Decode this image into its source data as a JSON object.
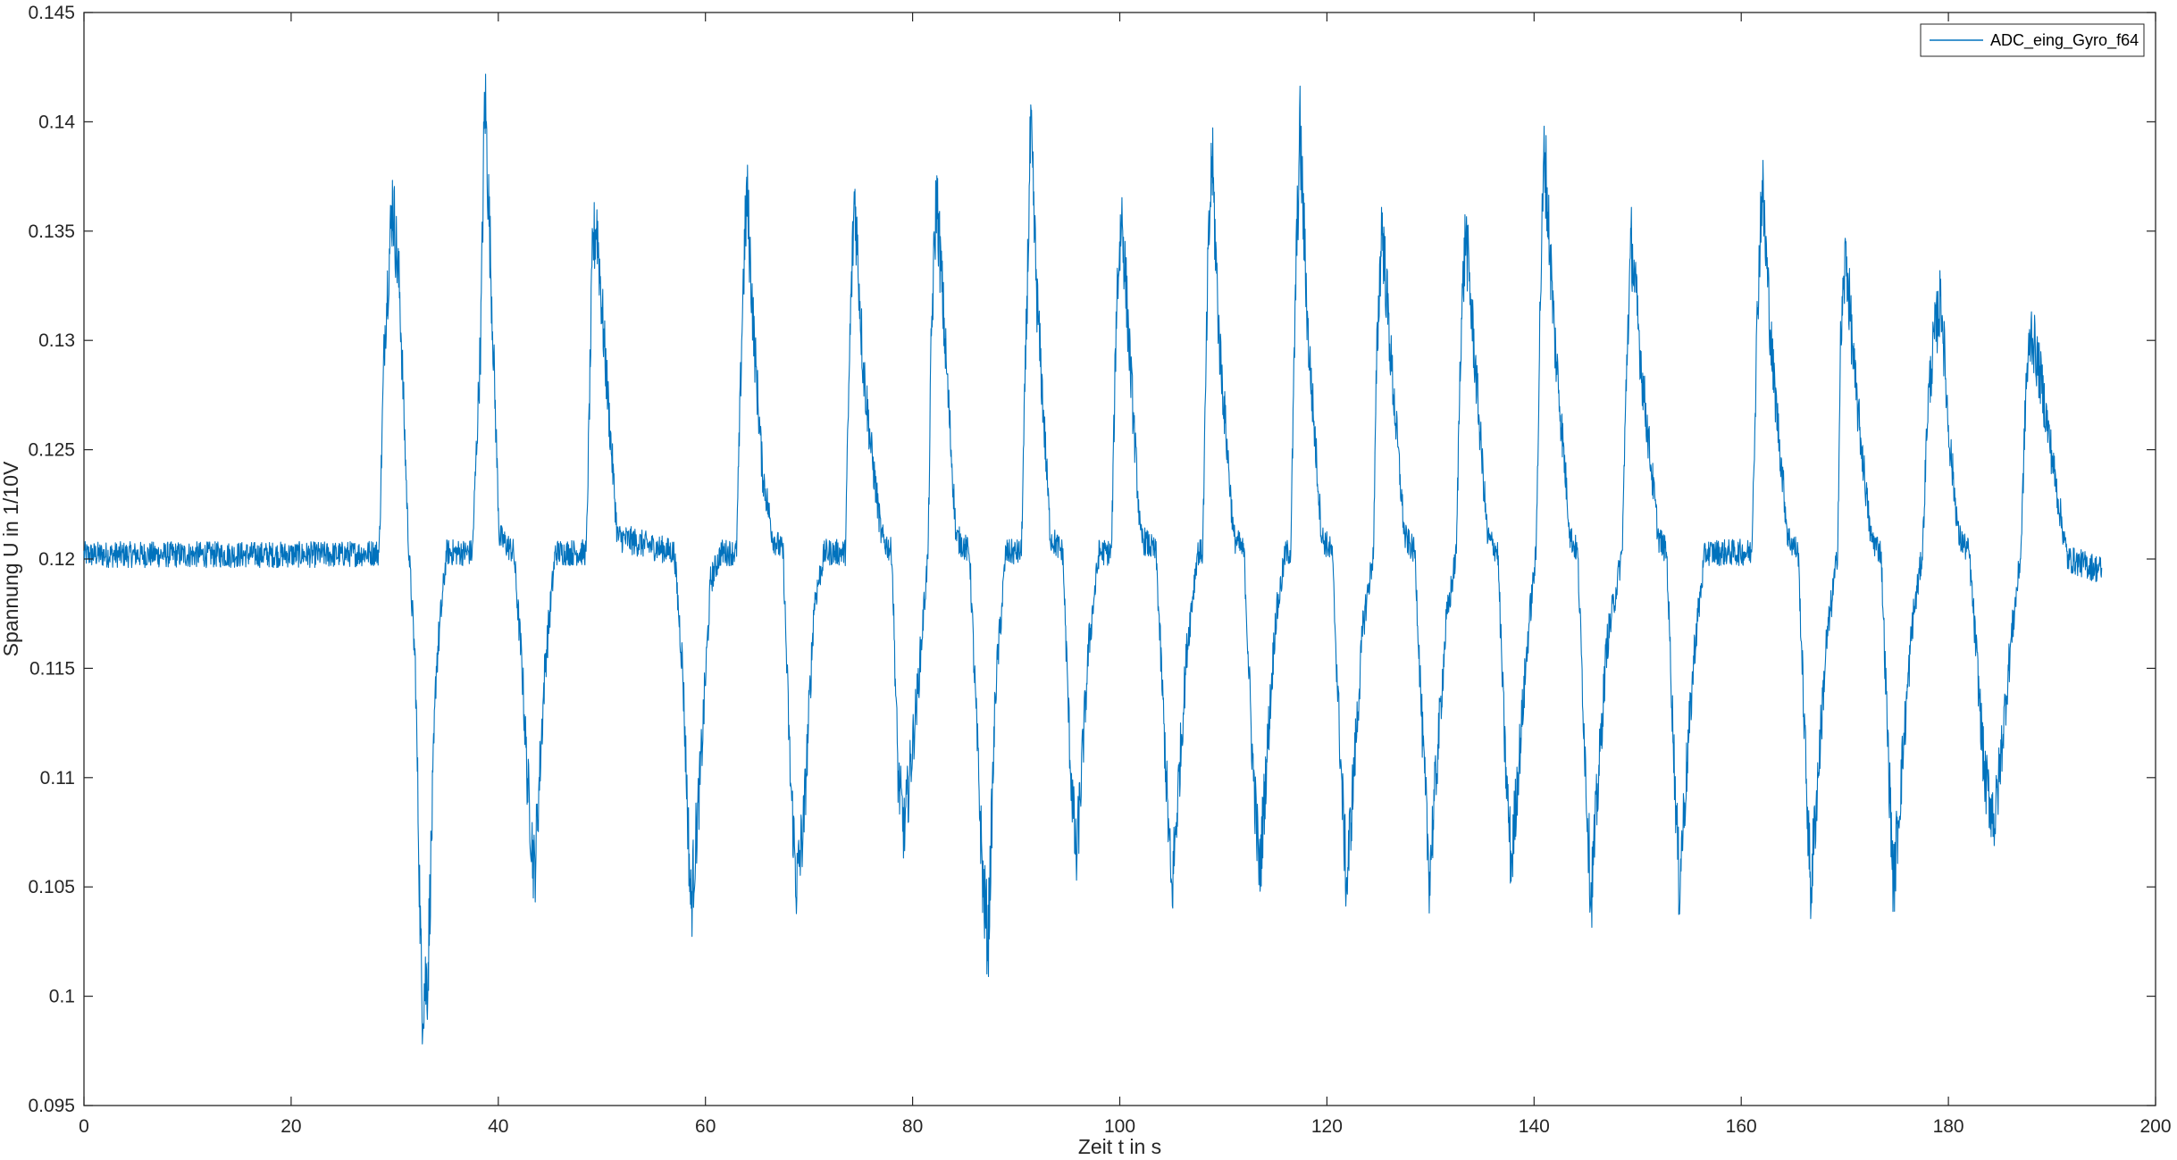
{
  "chart_data": {
    "type": "line",
    "title": "",
    "xlabel": "Zeit t in s",
    "ylabel": "Spannung U in 1/10V",
    "xlim": [
      0,
      200
    ],
    "ylim": [
      0.095,
      0.145
    ],
    "x_ticks": [
      0,
      20,
      40,
      60,
      80,
      100,
      120,
      140,
      160,
      180,
      200
    ],
    "x_tick_labels": [
      "0",
      "20",
      "40",
      "60",
      "80",
      "100",
      "120",
      "140",
      "160",
      "180",
      "200"
    ],
    "y_ticks": [
      0.095,
      0.1,
      0.105,
      0.11,
      0.115,
      0.12,
      0.125,
      0.13,
      0.135,
      0.14,
      0.145
    ],
    "y_tick_labels": [
      "0.095",
      "0.1",
      "0.105",
      "0.11",
      "0.115",
      "0.12",
      "0.125",
      "0.13",
      "0.135",
      "0.14",
      "0.145"
    ],
    "grid": "off",
    "legend_position": "top-right",
    "series": [
      {
        "name": "ADC_eing_Gyro_f64",
        "color": "#0072BD",
        "baseline": 0.1202,
        "x_end": 194.8,
        "points": [
          [
            0,
            0.1202
          ],
          [
            24.5,
            0.1202
          ],
          [
            28.5,
            0.1203
          ],
          [
            29.0,
            0.13
          ],
          [
            29.8,
            0.1365
          ],
          [
            30.5,
            0.132
          ],
          [
            31.3,
            0.121
          ],
          [
            32.0,
            0.115
          ],
          [
            32.6,
            0.1
          ],
          [
            33.2,
            0.101
          ],
          [
            34.0,
            0.115
          ],
          [
            35.0,
            0.1203
          ],
          [
            37.5,
            0.1203
          ],
          [
            38.3,
            0.13
          ],
          [
            38.7,
            0.1415
          ],
          [
            39.3,
            0.133
          ],
          [
            40.1,
            0.121
          ],
          [
            41.5,
            0.1203
          ],
          [
            42.3,
            0.115
          ],
          [
            42.8,
            0.11
          ],
          [
            43.5,
            0.1055
          ],
          [
            44.5,
            0.115
          ],
          [
            45.5,
            0.1203
          ],
          [
            48.5,
            0.1203
          ],
          [
            49.1,
            0.134
          ],
          [
            49.5,
            0.1355
          ],
          [
            50.2,
            0.13
          ],
          [
            51.5,
            0.121
          ],
          [
            57.0,
            0.1203
          ],
          [
            57.8,
            0.115
          ],
          [
            58.6,
            0.104
          ],
          [
            59.5,
            0.11
          ],
          [
            60.5,
            0.119
          ],
          [
            61.5,
            0.1203
          ],
          [
            63.0,
            0.1203
          ],
          [
            63.6,
            0.132
          ],
          [
            64.0,
            0.1368
          ],
          [
            64.7,
            0.13
          ],
          [
            65.5,
            0.124
          ],
          [
            66.5,
            0.121
          ],
          [
            67.5,
            0.1203
          ],
          [
            68.2,
            0.11
          ],
          [
            68.8,
            0.105
          ],
          [
            69.5,
            0.108
          ],
          [
            70.5,
            0.118
          ],
          [
            71.5,
            0.1203
          ],
          [
            73.5,
            0.1203
          ],
          [
            74.0,
            0.131
          ],
          [
            74.4,
            0.1368
          ],
          [
            75.2,
            0.129
          ],
          [
            76.0,
            0.125
          ],
          [
            77.0,
            0.121
          ],
          [
            78.0,
            0.1203
          ],
          [
            78.6,
            0.11
          ],
          [
            79.2,
            0.1075
          ],
          [
            80.5,
            0.114
          ],
          [
            81.5,
            0.1203
          ],
          [
            81.8,
            0.13
          ],
          [
            82.3,
            0.1368
          ],
          [
            83.0,
            0.131
          ],
          [
            84.2,
            0.121
          ],
          [
            85.5,
            0.1203
          ],
          [
            86.2,
            0.112
          ],
          [
            86.8,
            0.105
          ],
          [
            87.3,
            0.1025
          ],
          [
            88.0,
            0.114
          ],
          [
            89.0,
            0.1203
          ],
          [
            90.5,
            0.1203
          ],
          [
            91.0,
            0.131
          ],
          [
            91.4,
            0.1395
          ],
          [
            92.0,
            0.132
          ],
          [
            93.3,
            0.121
          ],
          [
            94.5,
            0.1203
          ],
          [
            95.2,
            0.111
          ],
          [
            95.8,
            0.106
          ],
          [
            97.0,
            0.116
          ],
          [
            98.0,
            0.1203
          ],
          [
            99.2,
            0.1203
          ],
          [
            99.7,
            0.132
          ],
          [
            100.2,
            0.1358
          ],
          [
            101.0,
            0.129
          ],
          [
            102.0,
            0.121
          ],
          [
            103.5,
            0.1203
          ],
          [
            104.3,
            0.112
          ],
          [
            105.0,
            0.1045
          ],
          [
            106.5,
            0.116
          ],
          [
            107.5,
            0.1203
          ],
          [
            108.0,
            0.1203
          ],
          [
            108.5,
            0.133
          ],
          [
            108.9,
            0.1385
          ],
          [
            109.6,
            0.13
          ],
          [
            111.0,
            0.121
          ],
          [
            112.0,
            0.1203
          ],
          [
            112.8,
            0.111
          ],
          [
            113.5,
            0.1055
          ],
          [
            115.0,
            0.117
          ],
          [
            116.0,
            0.1203
          ],
          [
            116.5,
            0.1203
          ],
          [
            117.0,
            0.133
          ],
          [
            117.4,
            0.1395
          ],
          [
            118.2,
            0.13
          ],
          [
            119.5,
            0.121
          ],
          [
            120.5,
            0.1203
          ],
          [
            121.3,
            0.111
          ],
          [
            121.9,
            0.105
          ],
          [
            123.5,
            0.117
          ],
          [
            124.5,
            0.1203
          ],
          [
            124.8,
            0.129
          ],
          [
            125.3,
            0.1355
          ],
          [
            126.2,
            0.129
          ],
          [
            127.5,
            0.121
          ],
          [
            128.5,
            0.1203
          ],
          [
            129.3,
            0.111
          ],
          [
            129.9,
            0.1055
          ],
          [
            131.5,
            0.117
          ],
          [
            132.5,
            0.1203
          ],
          [
            132.9,
            0.13
          ],
          [
            133.4,
            0.135
          ],
          [
            134.3,
            0.129
          ],
          [
            135.5,
            0.121
          ],
          [
            136.5,
            0.1203
          ],
          [
            137.2,
            0.111
          ],
          [
            137.8,
            0.106
          ],
          [
            139.5,
            0.117
          ],
          [
            140.2,
            0.1203
          ],
          [
            140.6,
            0.132
          ],
          [
            141.0,
            0.1388
          ],
          [
            142.0,
            0.13
          ],
          [
            143.5,
            0.121
          ],
          [
            144.2,
            0.1203
          ],
          [
            145.0,
            0.11
          ],
          [
            145.5,
            0.1045
          ],
          [
            147.0,
            0.116
          ],
          [
            148.5,
            0.1203
          ],
          [
            149.0,
            0.13
          ],
          [
            149.4,
            0.1345
          ],
          [
            150.5,
            0.128
          ],
          [
            152.0,
            0.121
          ],
          [
            152.8,
            0.1203
          ],
          [
            153.5,
            0.111
          ],
          [
            154.0,
            0.105
          ],
          [
            155.5,
            0.116
          ],
          [
            156.5,
            0.1203
          ],
          [
            161.0,
            0.1203
          ],
          [
            161.6,
            0.132
          ],
          [
            162.0,
            0.1372
          ],
          [
            163.0,
            0.129
          ],
          [
            164.5,
            0.121
          ],
          [
            165.5,
            0.1203
          ],
          [
            166.2,
            0.111
          ],
          [
            166.7,
            0.1048
          ],
          [
            168.2,
            0.116
          ],
          [
            169.3,
            0.1203
          ],
          [
            169.6,
            0.13
          ],
          [
            170.1,
            0.134
          ],
          [
            171.0,
            0.128
          ],
          [
            172.5,
            0.121
          ],
          [
            173.5,
            0.1203
          ],
          [
            174.2,
            0.111
          ],
          [
            174.7,
            0.105
          ],
          [
            176.5,
            0.117
          ],
          [
            177.5,
            0.1203
          ],
          [
            178.0,
            0.127
          ],
          [
            178.6,
            0.13
          ],
          [
            179.3,
            0.132
          ],
          [
            180.0,
            0.126
          ],
          [
            181.0,
            0.121
          ],
          [
            182.0,
            0.1203
          ],
          [
            182.8,
            0.115
          ],
          [
            183.5,
            0.11
          ],
          [
            184.5,
            0.108
          ],
          [
            186.0,
            0.116
          ],
          [
            187.0,
            0.1203
          ],
          [
            187.5,
            0.128
          ],
          [
            188.0,
            0.1305
          ],
          [
            189.0,
            0.128
          ],
          [
            190.5,
            0.123
          ],
          [
            191.5,
            0.12
          ],
          [
            194.8,
            0.1195
          ]
        ]
      }
    ]
  }
}
